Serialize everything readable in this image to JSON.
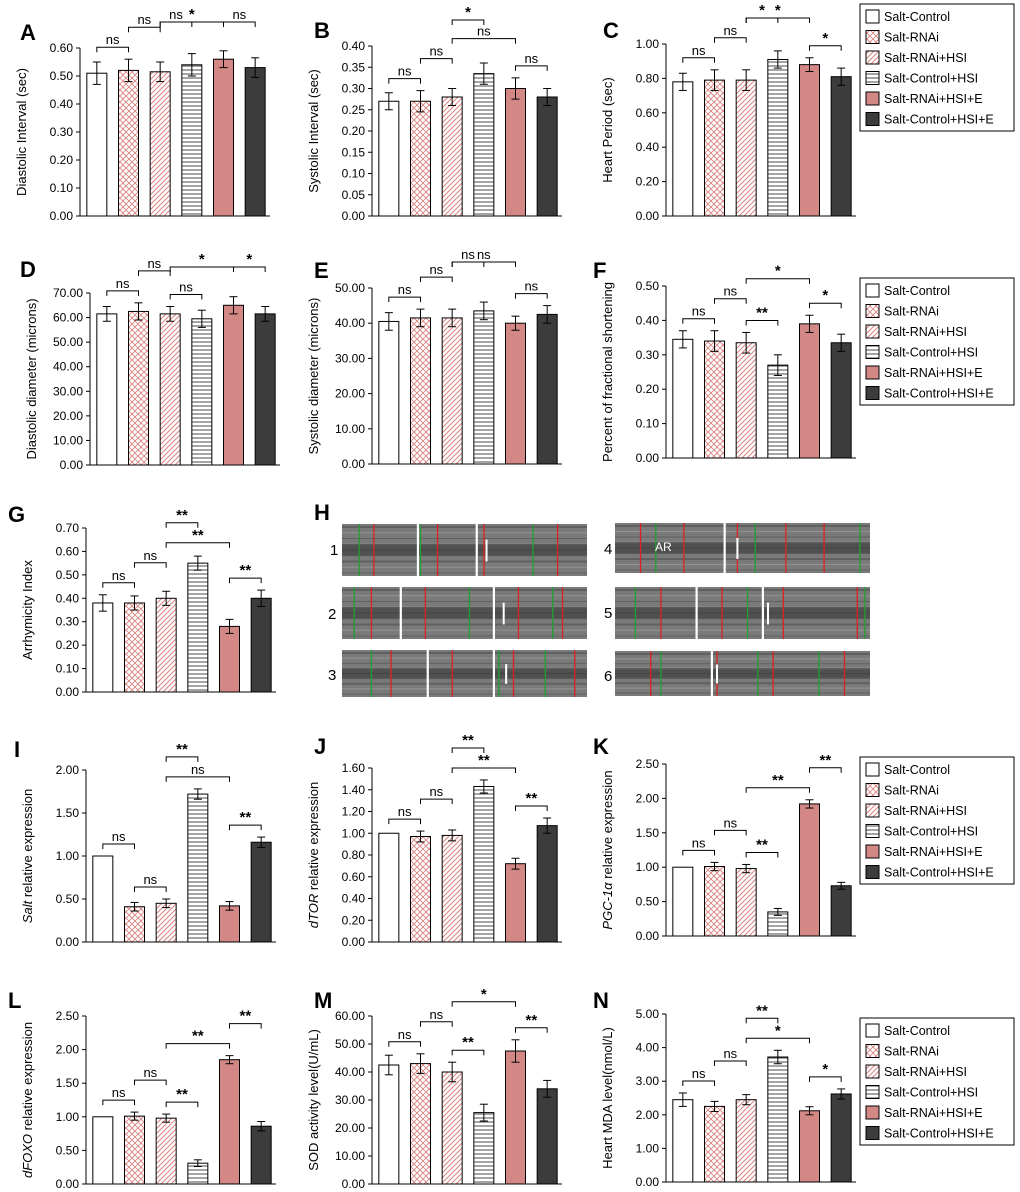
{
  "colors": {
    "white": "#ffffff",
    "pink": "#f0a6a6",
    "rose": "#d48886",
    "dark": "#3c3c3c",
    "stroke": "#000000",
    "kymo_bg": "#7a7a7a",
    "red_line": "#e02020",
    "green_line": "#1fa031"
  },
  "legend": {
    "entries": [
      "Salt-Control",
      "Salt-RNAi",
      "Salt-RNAi+HSI",
      "Salt-Control+HSI",
      "Salt-RNAi+HSI+E",
      "Salt-Control+HSI+E"
    ]
  },
  "kymographs": {
    "panel_label": "H",
    "rows": [
      {
        "label": "1"
      },
      {
        "label": "2"
      },
      {
        "label": "3"
      },
      {
        "label": "4",
        "annotation": "AR"
      },
      {
        "label": "5"
      },
      {
        "label": "6"
      }
    ]
  },
  "chart_data": [
    {
      "panel": "A",
      "type": "bar",
      "ylabel": "Diastolic Interval (sec)",
      "ylim": [
        0,
        0.6
      ],
      "ticks": [
        "0.00",
        "0.10",
        "0.20",
        "0.30",
        "0.40",
        "0.50",
        "0.60"
      ],
      "values": [
        0.51,
        0.52,
        0.515,
        0.54,
        0.56,
        0.53
      ],
      "errors": [
        0.04,
        0.04,
        0.035,
        0.04,
        0.03,
        0.035
      ],
      "comparisons": [
        {
          "from": 0,
          "to": 1,
          "label": "ns"
        },
        {
          "from": 1,
          "to": 2,
          "label": "ns"
        },
        {
          "from": 2,
          "to": 4,
          "label": "*"
        },
        {
          "from": 2,
          "to": 3,
          "label": "ns"
        },
        {
          "from": 4,
          "to": 5,
          "label": "ns"
        }
      ]
    },
    {
      "panel": "B",
      "type": "bar",
      "ylabel": "Systolic Interval (sec)",
      "ylim": [
        0,
        0.4
      ],
      "ticks": [
        "0.00",
        "0.05",
        "0.10",
        "0.15",
        "0.20",
        "0.25",
        "0.30",
        "0.35",
        "0.40"
      ],
      "values": [
        0.27,
        0.27,
        0.28,
        0.335,
        0.3,
        0.28
      ],
      "errors": [
        0.02,
        0.025,
        0.02,
        0.025,
        0.025,
        0.02
      ],
      "comparisons": [
        {
          "from": 0,
          "to": 1,
          "label": "ns"
        },
        {
          "from": 1,
          "to": 2,
          "label": "ns"
        },
        {
          "from": 2,
          "to": 4,
          "label": "ns"
        },
        {
          "from": 2,
          "to": 3,
          "label": "*"
        },
        {
          "from": 4,
          "to": 5,
          "label": "ns"
        }
      ]
    },
    {
      "panel": "C",
      "type": "bar",
      "ylabel": "Heart Period (sec)",
      "ylim": [
        0,
        1.0
      ],
      "ticks": [
        "0.00",
        "0.20",
        "0.40",
        "0.60",
        "0.80",
        "1.00"
      ],
      "values": [
        0.78,
        0.79,
        0.79,
        0.91,
        0.88,
        0.81
      ],
      "errors": [
        0.05,
        0.06,
        0.06,
        0.05,
        0.04,
        0.05
      ],
      "comparisons": [
        {
          "from": 0,
          "to": 1,
          "label": "ns"
        },
        {
          "from": 1,
          "to": 2,
          "label": "ns"
        },
        {
          "from": 2,
          "to": 4,
          "label": "*"
        },
        {
          "from": 2,
          "to": 3,
          "label": "*"
        },
        {
          "from": 4,
          "to": 5,
          "label": "*"
        }
      ]
    },
    {
      "panel": "D",
      "type": "bar",
      "ylabel": "Diastolic diameter (microns)",
      "ylim": [
        0,
        70
      ],
      "ticks": [
        "0.00",
        "10.00",
        "20.00",
        "30.00",
        "40.00",
        "50.00",
        "60.00",
        "70.00"
      ],
      "values": [
        61.5,
        62.5,
        61.5,
        59.5,
        65,
        61.5
      ],
      "errors": [
        3,
        3.5,
        3,
        3.5,
        3.5,
        3
      ],
      "comparisons": [
        {
          "from": 0,
          "to": 1,
          "label": "ns"
        },
        {
          "from": 1,
          "to": 2,
          "label": "ns"
        },
        {
          "from": 2,
          "to": 4,
          "label": "*"
        },
        {
          "from": 2,
          "to": 3,
          "label": "ns"
        },
        {
          "from": 4,
          "to": 5,
          "label": "*"
        }
      ]
    },
    {
      "panel": "E",
      "type": "bar",
      "ylabel": "Systolic diameter (microns)",
      "ylim": [
        0,
        50
      ],
      "ticks": [
        "0.00",
        "10.00",
        "20.00",
        "30.00",
        "40.00",
        "50.00"
      ],
      "values": [
        40.5,
        41.5,
        41.5,
        43.5,
        40,
        42.5
      ],
      "errors": [
        2.5,
        2.5,
        2.5,
        2.5,
        2,
        2.5
      ],
      "comparisons": [
        {
          "from": 0,
          "to": 1,
          "label": "ns"
        },
        {
          "from": 1,
          "to": 2,
          "label": "ns"
        },
        {
          "from": 2,
          "to": 4,
          "label": "ns"
        },
        {
          "from": 2,
          "to": 3,
          "label": "ns"
        },
        {
          "from": 4,
          "to": 5,
          "label": "ns"
        }
      ]
    },
    {
      "panel": "F",
      "type": "bar",
      "ylabel": "Percent of fractional shortening",
      "ylim": [
        0,
        0.5
      ],
      "ticks": [
        "0.00",
        "0.10",
        "0.20",
        "0.30",
        "0.40",
        "0.50"
      ],
      "values": [
        0.345,
        0.34,
        0.335,
        0.27,
        0.39,
        0.335
      ],
      "errors": [
        0.025,
        0.03,
        0.03,
        0.03,
        0.025,
        0.025
      ],
      "comparisons": [
        {
          "from": 0,
          "to": 1,
          "label": "ns"
        },
        {
          "from": 1,
          "to": 2,
          "label": "ns"
        },
        {
          "from": 2,
          "to": 4,
          "label": "*"
        },
        {
          "from": 2,
          "to": 3,
          "label": "**"
        },
        {
          "from": 4,
          "to": 5,
          "label": "*"
        }
      ]
    },
    {
      "panel": "G",
      "type": "bar",
      "ylabel": "Arrhymicity Index",
      "ylim": [
        0,
        0.7
      ],
      "ticks": [
        "0.00",
        "0.10",
        "0.20",
        "0.30",
        "0.40",
        "0.50",
        "0.60",
        "0.70"
      ],
      "values": [
        0.38,
        0.38,
        0.4,
        0.55,
        0.28,
        0.4
      ],
      "errors": [
        0.035,
        0.03,
        0.03,
        0.03,
        0.03,
        0.035
      ],
      "comparisons": [
        {
          "from": 0,
          "to": 1,
          "label": "ns"
        },
        {
          "from": 1,
          "to": 2,
          "label": "ns"
        },
        {
          "from": 2,
          "to": 4,
          "label": "**"
        },
        {
          "from": 2,
          "to": 3,
          "label": "**"
        },
        {
          "from": 4,
          "to": 5,
          "label": "**"
        }
      ]
    },
    {
      "panel": "I",
      "type": "bar",
      "ylabel_italic": "Salt",
      "ylabel_rest": " relative expression",
      "ylim": [
        0,
        2.0
      ],
      "ticks": [
        "0.00",
        "0.50",
        "1.00",
        "1.50",
        "2.00"
      ],
      "values": [
        1.0,
        0.41,
        0.45,
        1.72,
        0.42,
        1.16
      ],
      "errors": [
        0,
        0.05,
        0.05,
        0.06,
        0.05,
        0.06
      ],
      "comparisons": [
        {
          "from": 0,
          "to": 1,
          "label": "ns"
        },
        {
          "from": 1,
          "to": 2,
          "label": "ns"
        },
        {
          "from": 2,
          "to": 4,
          "label": "ns"
        },
        {
          "from": 2,
          "to": 3,
          "label": "**"
        },
        {
          "from": 4,
          "to": 5,
          "label": "**"
        }
      ]
    },
    {
      "panel": "J",
      "type": "bar",
      "ylabel_italic": "dTOR",
      "ylabel_rest": " relative expression",
      "ylim": [
        0,
        1.6
      ],
      "ticks": [
        "0.00",
        "0.20",
        "0.40",
        "0.60",
        "0.80",
        "1.00",
        "1.20",
        "1.40",
        "1.60"
      ],
      "values": [
        1.0,
        0.97,
        0.98,
        1.43,
        0.72,
        1.07
      ],
      "errors": [
        0,
        0.05,
        0.05,
        0.06,
        0.05,
        0.07
      ],
      "comparisons": [
        {
          "from": 0,
          "to": 1,
          "label": "ns"
        },
        {
          "from": 1,
          "to": 2,
          "label": "ns"
        },
        {
          "from": 2,
          "to": 4,
          "label": "**"
        },
        {
          "from": 2,
          "to": 3,
          "label": "**"
        },
        {
          "from": 4,
          "to": 5,
          "label": "**"
        }
      ]
    },
    {
      "panel": "K",
      "type": "bar",
      "ylabel_italic": "PGC-1α",
      "ylabel_rest": " relative expression",
      "ylim": [
        0,
        2.5
      ],
      "ticks": [
        "0.00",
        "0.50",
        "1.00",
        "1.50",
        "2.00",
        "2.50"
      ],
      "values": [
        1.0,
        1.01,
        0.98,
        0.35,
        1.92,
        0.73
      ],
      "errors": [
        0,
        0.06,
        0.06,
        0.05,
        0.06,
        0.05
      ],
      "comparisons": [
        {
          "from": 0,
          "to": 1,
          "label": "ns"
        },
        {
          "from": 1,
          "to": 2,
          "label": "ns"
        },
        {
          "from": 2,
          "to": 4,
          "label": "**"
        },
        {
          "from": 2,
          "to": 3,
          "label": "**"
        },
        {
          "from": 4,
          "to": 5,
          "label": "**"
        }
      ]
    },
    {
      "panel": "L",
      "type": "bar",
      "ylabel_italic": "dFOXO",
      "ylabel_rest": " relative expression",
      "ylim": [
        0,
        2.5
      ],
      "ticks": [
        "0.00",
        "0.50",
        "1.00",
        "1.50",
        "2.00",
        "2.50"
      ],
      "values": [
        1.0,
        1.01,
        0.98,
        0.31,
        1.85,
        0.86
      ],
      "errors": [
        0,
        0.06,
        0.06,
        0.05,
        0.06,
        0.07
      ],
      "comparisons": [
        {
          "from": 0,
          "to": 1,
          "label": "ns"
        },
        {
          "from": 1,
          "to": 2,
          "label": "ns"
        },
        {
          "from": 2,
          "to": 4,
          "label": "**"
        },
        {
          "from": 2,
          "to": 3,
          "label": "**"
        },
        {
          "from": 4,
          "to": 5,
          "label": "**"
        }
      ]
    },
    {
      "panel": "M",
      "type": "bar",
      "ylabel": "SOD activity level(U/mL)",
      "ylim": [
        0,
        60
      ],
      "ticks": [
        "0.00",
        "10.00",
        "20.00",
        "30.00",
        "40.00",
        "50.00",
        "60.00"
      ],
      "values": [
        42.5,
        43,
        40,
        25.5,
        47.5,
        34
      ],
      "errors": [
        3.5,
        3.5,
        3.5,
        3,
        4,
        3
      ],
      "comparisons": [
        {
          "from": 0,
          "to": 1,
          "label": "ns"
        },
        {
          "from": 1,
          "to": 2,
          "label": "ns"
        },
        {
          "from": 2,
          "to": 4,
          "label": "*"
        },
        {
          "from": 2,
          "to": 3,
          "label": "**"
        },
        {
          "from": 4,
          "to": 5,
          "label": "**"
        }
      ]
    },
    {
      "panel": "N",
      "type": "bar",
      "ylabel": "Heart MDA level(nmol/L)",
      "ylim": [
        0,
        5.0
      ],
      "ticks": [
        "0.00",
        "1.00",
        "2.00",
        "3.00",
        "4.00",
        "5.00"
      ],
      "values": [
        2.45,
        2.25,
        2.45,
        3.72,
        2.12,
        2.62
      ],
      "errors": [
        0.2,
        0.15,
        0.15,
        0.2,
        0.12,
        0.15
      ],
      "comparisons": [
        {
          "from": 0,
          "to": 1,
          "label": "ns"
        },
        {
          "from": 1,
          "to": 2,
          "label": "ns"
        },
        {
          "from": 2,
          "to": 4,
          "label": "*"
        },
        {
          "from": 2,
          "to": 3,
          "label": "**"
        },
        {
          "from": 4,
          "to": 5,
          "label": "*"
        }
      ]
    }
  ]
}
